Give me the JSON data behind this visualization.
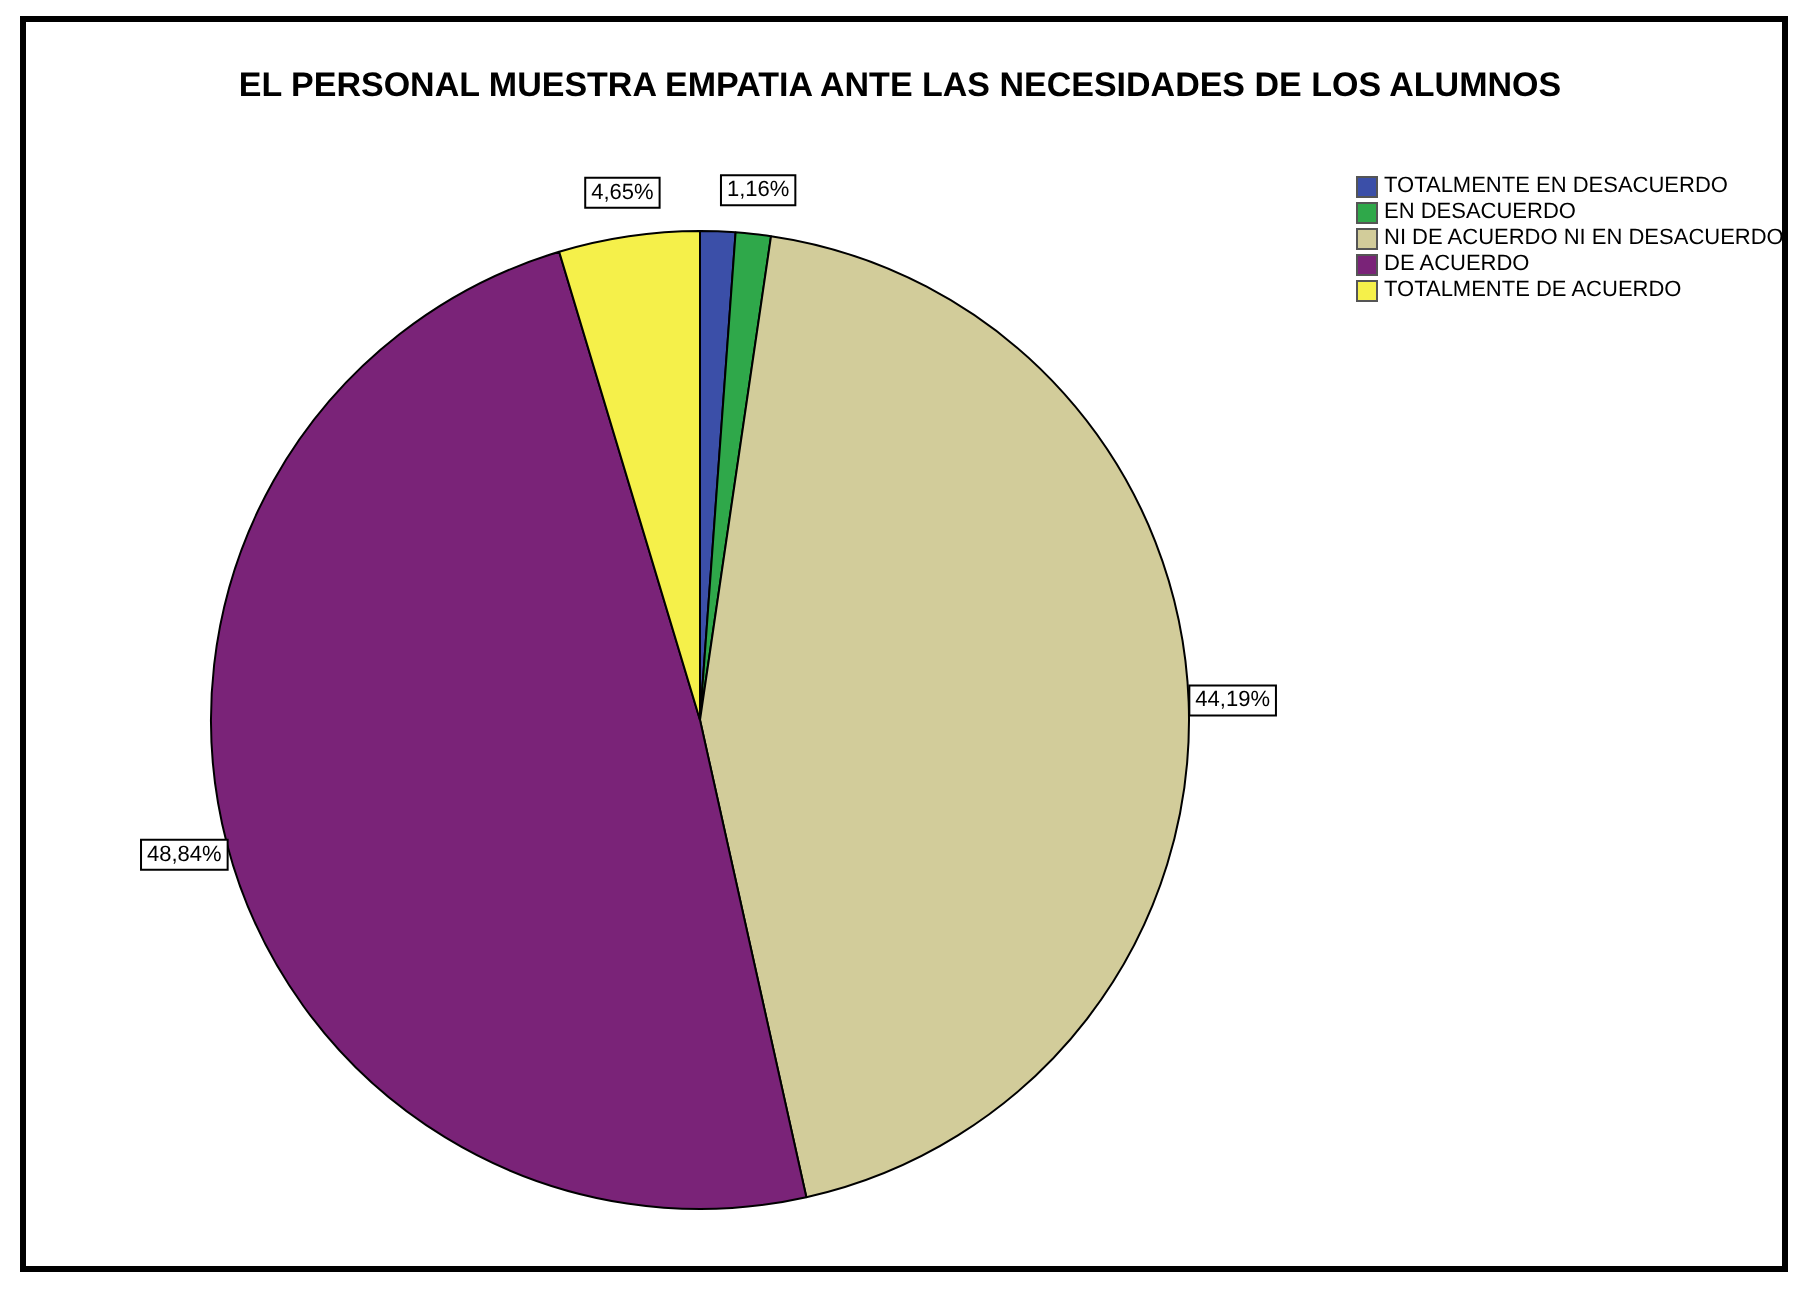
{
  "chart_data": {
    "type": "pie",
    "title": "EL PERSONAL MUESTRA EMPATIA ANTE LAS NECESIDADES DE LOS ALUMNOS",
    "categories": [
      "TOTALMENTE EN DESACUERDO",
      "EN DESACUERDO",
      "NI DE ACUERDO NI EN DESACUERDO",
      "DE ACUERDO",
      "TOTALMENTE DE ACUERDO"
    ],
    "values": [
      1.16,
      1.16,
      44.19,
      48.84,
      4.65
    ],
    "colors": [
      "#3b4fa8",
      "#2fa84a",
      "#d2cc9a",
      "#7a2378",
      "#f5f04a"
    ],
    "value_labels": [
      null,
      "1,16%",
      "44,19%",
      "48,84%",
      "4,65%"
    ],
    "legend": "top right"
  }
}
